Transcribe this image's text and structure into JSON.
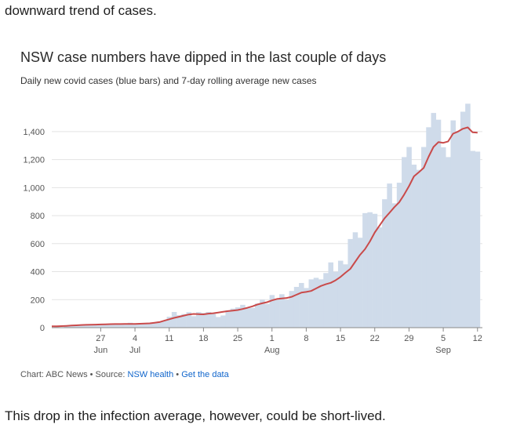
{
  "article": {
    "intro_text": "downward trend of cases.",
    "outro_text": "This drop in the infection average, however, could be short-lived."
  },
  "colors": {
    "bars": "#cfdbea",
    "line": "#c94a4a",
    "grid": "#e3e3e3",
    "link": "#1166cc"
  },
  "credit": {
    "prefix": "Chart: ABC News • Source: ",
    "source_link": "NSW health",
    "separator": " • ",
    "data_link": "Get the data"
  },
  "chart_data": {
    "type": "bar",
    "title": "NSW case numbers have dipped in the last couple of days",
    "subtitle": "Daily new covid cases (blue bars) and 7-day rolling average new cases",
    "xlabel": "",
    "ylabel": "",
    "ylim": [
      0,
      1500
    ],
    "y_ticks": [
      {
        "value": 0,
        "label": "0"
      },
      {
        "value": 200,
        "label": "200"
      },
      {
        "value": 400,
        "label": "400"
      },
      {
        "value": 600,
        "label": "600"
      },
      {
        "value": 800,
        "label": "800"
      },
      {
        "value": 1000,
        "label": "1,000"
      },
      {
        "value": 1200,
        "label": "1,200"
      },
      {
        "value": 1400,
        "label": "1,400"
      }
    ],
    "x_ticks": [
      {
        "day": 10,
        "label": "27",
        "sublabel": "Jun"
      },
      {
        "day": 17,
        "label": "4",
        "sublabel": "Jul"
      },
      {
        "day": 24,
        "label": "11",
        "sublabel": ""
      },
      {
        "day": 31,
        "label": "18",
        "sublabel": ""
      },
      {
        "day": 38,
        "label": "25",
        "sublabel": ""
      },
      {
        "day": 45,
        "label": "1",
        "sublabel": "Aug"
      },
      {
        "day": 52,
        "label": "8",
        "sublabel": ""
      },
      {
        "day": 59,
        "label": "15",
        "sublabel": ""
      },
      {
        "day": 66,
        "label": "22",
        "sublabel": ""
      },
      {
        "day": 73,
        "label": "29",
        "sublabel": ""
      },
      {
        "day": 80,
        "label": "5",
        "sublabel": "Sep"
      },
      {
        "day": 87,
        "label": "12",
        "sublabel": ""
      }
    ],
    "series": [
      {
        "name": "Daily new cases",
        "type": "bar",
        "values": [
          5,
          3,
          10,
          11,
          16,
          18,
          19,
          20,
          22,
          25,
          24,
          27,
          29,
          22,
          27,
          35,
          29,
          24,
          30,
          35,
          38,
          44,
          50,
          78,
          112,
          89,
          97,
          111,
          82,
          111,
          105,
          112,
          98,
          76,
          87,
          124,
          136,
          145,
          163,
          141,
          141,
          172,
          199,
          170,
          233,
          200,
          239,
          199,
          262,
          291,
          319,
          283,
          345,
          356,
          345,
          390,
          466,
          399,
          478,
          452,
          633,
          681,
          642,
          818,
          824,
          813,
          716,
          917,
          1029,
          888,
          1035,
          1218,
          1290,
          1164,
          1127,
          1290,
          1431,
          1533,
          1485,
          1288,
          1218,
          1480,
          1405,
          1542,
          1599,
          1262,
          1257
        ],
        "day_start": 1
      },
      {
        "name": "7-day rolling average",
        "type": "line",
        "values": [
          10,
          10,
          11,
          13,
          15,
          17,
          19,
          20,
          21,
          22,
          23,
          24,
          25,
          26,
          26,
          27,
          27,
          27,
          28,
          29,
          31,
          35,
          40,
          50,
          60,
          70,
          78,
          86,
          94,
          98,
          96,
          95,
          100,
          103,
          108,
          113,
          118,
          122,
          126,
          133,
          142,
          152,
          165,
          174,
          182,
          195,
          205,
          208,
          212,
          220,
          235,
          250,
          255,
          262,
          280,
          298,
          310,
          320,
          338,
          362,
          392,
          420,
          470,
          520,
          560,
          615,
          680,
          730,
          780,
          820,
          860,
          895,
          950,
          1010,
          1080,
          1110,
          1140,
          1220,
          1290,
          1325,
          1320,
          1330,
          1385,
          1400,
          1420,
          1430,
          1395,
          1392
        ],
        "day_start": 0
      }
    ]
  }
}
